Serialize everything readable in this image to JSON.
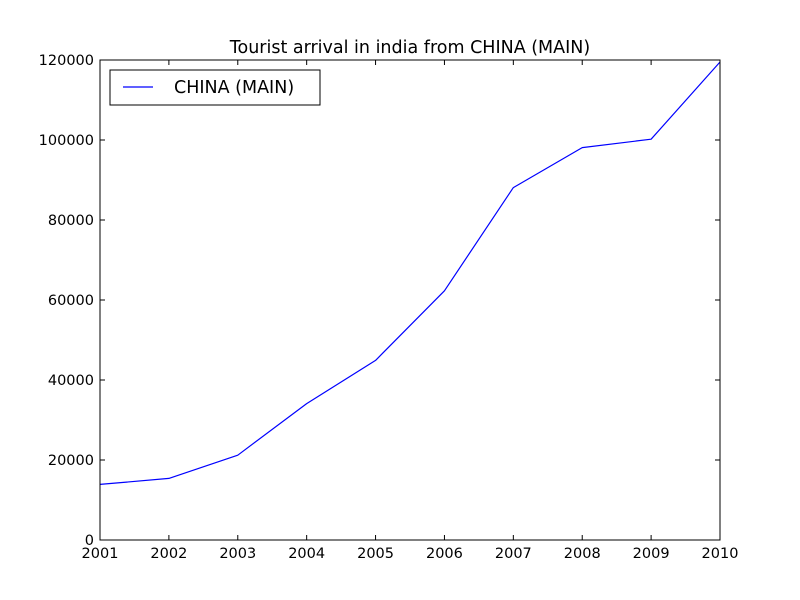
{
  "chart_data": {
    "type": "line",
    "title": "Tourist arrival in india from CHINA (MAIN)",
    "xlabel": "",
    "ylabel": "",
    "x": [
      2001,
      2002,
      2003,
      2004,
      2005,
      2006,
      2007,
      2008,
      2009,
      2010
    ],
    "series": [
      {
        "name": "CHINA (MAIN)",
        "color": "#0000ff",
        "values": [
          13900,
          15400,
          21200,
          34100,
          44900,
          62300,
          88100,
          98100,
          100200,
          119500
        ]
      }
    ],
    "xlim": [
      2001,
      2010
    ],
    "ylim": [
      0,
      120000
    ],
    "xticks": [
      "2001",
      "2002",
      "2003",
      "2004",
      "2005",
      "2006",
      "2007",
      "2008",
      "2009",
      "2010"
    ],
    "yticks": [
      "0",
      "20000",
      "40000",
      "60000",
      "80000",
      "100000",
      "120000"
    ],
    "grid": false,
    "legend_position": "top-left"
  }
}
